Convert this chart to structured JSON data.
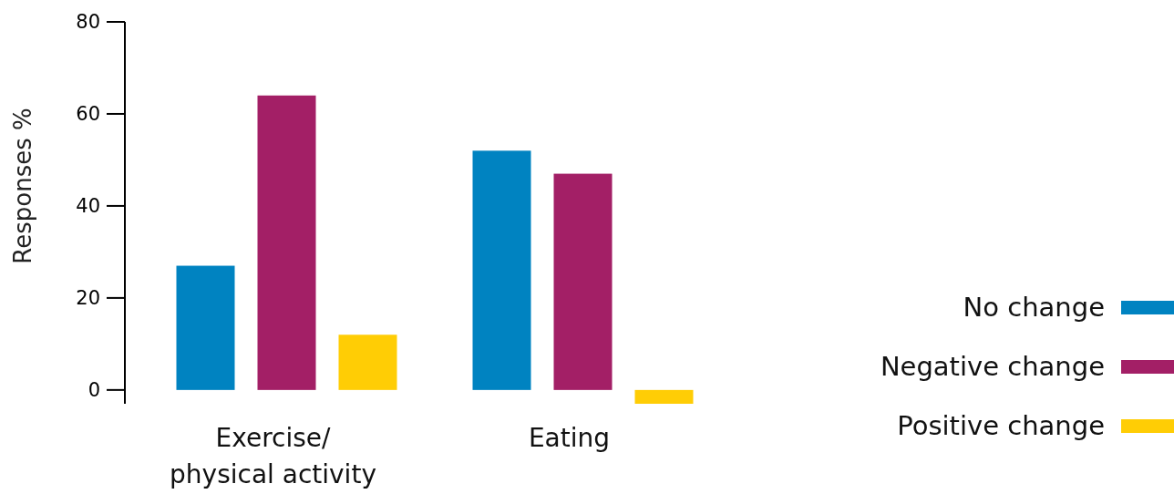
{
  "chart_data": {
    "type": "bar",
    "ylabel": "Responses %",
    "categories": [
      "Exercise/ physical activity",
      "Eating"
    ],
    "series": [
      {
        "name": "No change",
        "color": "#0083c1",
        "values": [
          27,
          52
        ]
      },
      {
        "name": "Negative change",
        "color": "#a31f66",
        "values": [
          64,
          47
        ]
      },
      {
        "name": "Positive change",
        "color": "#ffcd05",
        "values": [
          12,
          -3
        ]
      }
    ],
    "ylim": [
      -3,
      80
    ],
    "yticks": [
      0,
      20,
      40,
      60,
      80
    ],
    "grid": false,
    "legend": "right"
  }
}
